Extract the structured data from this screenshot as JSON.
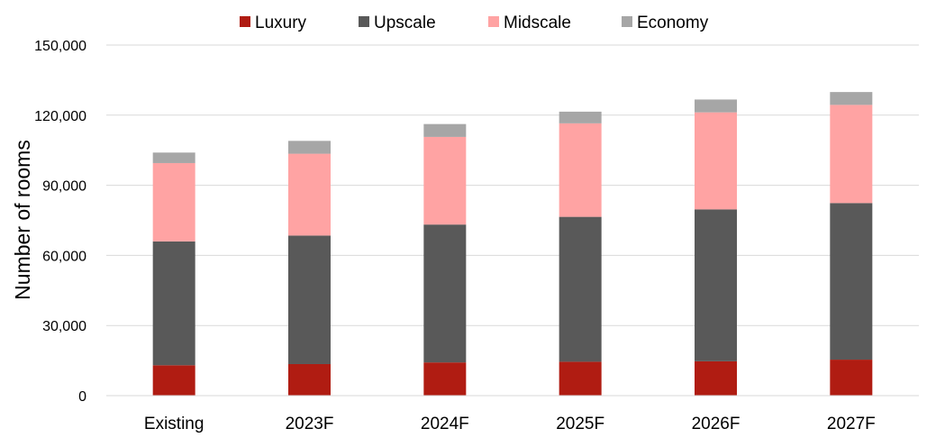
{
  "chart_data": {
    "type": "bar",
    "stacked": true,
    "ylabel": "Number of rooms",
    "ylim": [
      0,
      150000
    ],
    "yticks": [
      0,
      30000,
      60000,
      90000,
      120000,
      150000
    ],
    "ytick_labels": [
      "0",
      "30,000",
      "60,000",
      "90,000",
      "120,000",
      "150,000"
    ],
    "grid": true,
    "legend_position": "top",
    "categories": [
      "Existing",
      "2023F",
      "2024F",
      "2025F",
      "2026F",
      "2027F"
    ],
    "series": [
      {
        "name": "Luxury",
        "color": "#b01c12",
        "values": [
          13000,
          13500,
          14200,
          14500,
          14700,
          15400
        ]
      },
      {
        "name": "Upscale",
        "color": "#595959",
        "values": [
          53000,
          55000,
          59000,
          62000,
          65000,
          67000
        ]
      },
      {
        "name": "Midscale",
        "color": "#ffa3a3",
        "values": [
          33500,
          35000,
          37500,
          40000,
          41500,
          42000
        ]
      },
      {
        "name": "Economy",
        "color": "#a6a6a6",
        "values": [
          4500,
          5500,
          5500,
          5000,
          5500,
          5500
        ]
      }
    ]
  }
}
